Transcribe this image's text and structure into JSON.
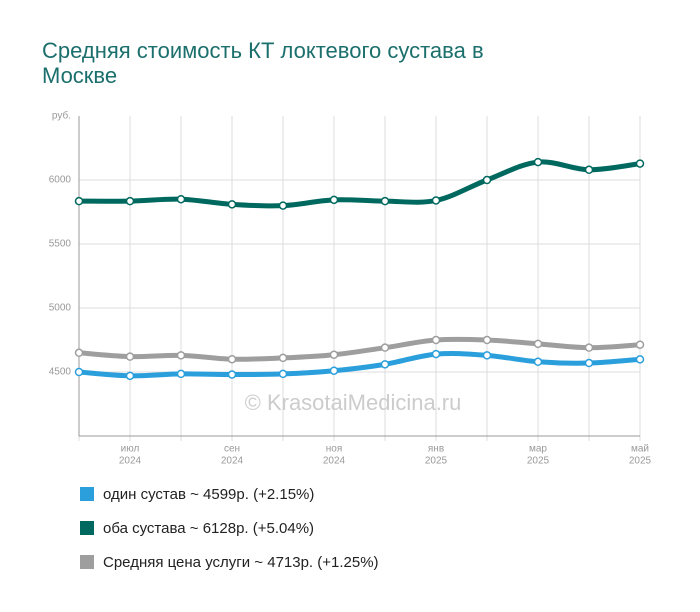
{
  "chart_data": {
    "type": "line",
    "title": "Средняя стоимость КТ локтевого сустава в Москве",
    "watermark": "© KrasotaiMedicina.ru",
    "categories": [
      null,
      [
        "июл",
        "2024"
      ],
      null,
      [
        "сен",
        "2024"
      ],
      null,
      [
        "ноя",
        "2024"
      ],
      null,
      [
        "янв",
        "2025"
      ],
      null,
      [
        "мар",
        "2025"
      ],
      null,
      [
        "май",
        "2025"
      ]
    ],
    "series": [
      {
        "name": "один сустав ~ 4599р. (+2.15%)",
        "color": "#2a9fdc",
        "values": [
          4500,
          4470,
          4485,
          4480,
          4485,
          4510,
          4560,
          4640,
          4630,
          4580,
          4570,
          4599
        ]
      },
      {
        "name": "оба сустава ~ 6128р. (+5.04%)",
        "color": "#00695f",
        "values": [
          5835,
          5835,
          5850,
          5810,
          5800,
          5845,
          5835,
          5840,
          6000,
          6140,
          6080,
          6128
        ]
      },
      {
        "name": "Средняя цена услуги ~ 4713р. (+1.25%)",
        "color": "#9e9e9e",
        "values": [
          4650,
          4620,
          4630,
          4600,
          4610,
          4635,
          4690,
          4750,
          4750,
          4720,
          4690,
          4713
        ]
      }
    ],
    "ylim": [
      4000,
      6500
    ],
    "yticks": [
      4500,
      5000,
      5500,
      6000,
      {
        "value": 6500,
        "label": "руб."
      }
    ],
    "grid": true
  }
}
